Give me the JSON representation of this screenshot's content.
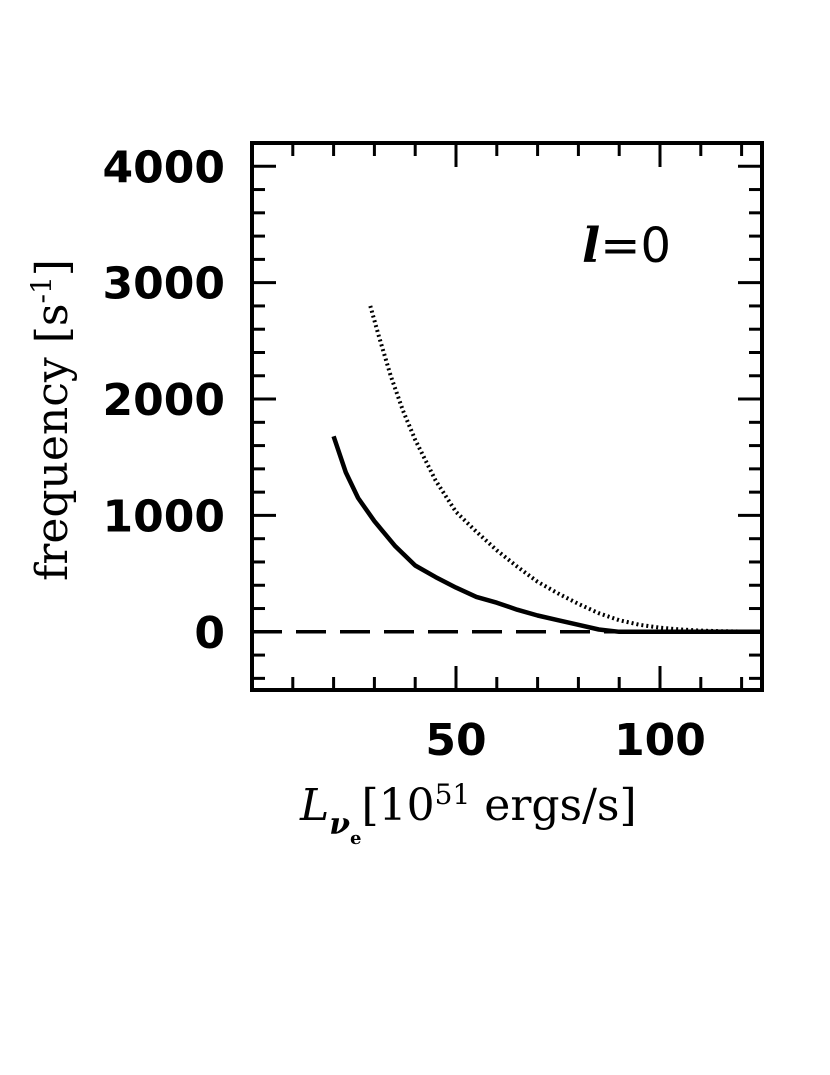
{
  "chart_data": {
    "type": "line",
    "title": "",
    "annotation": {
      "symbol": "l",
      "text": "=0"
    },
    "xlabel": {
      "symbol": "L",
      "sub": "ν",
      "subsub": "e",
      "prefix": "[10",
      "exp": "51",
      "suffix": " ergs/s]"
    },
    "ylabel": {
      "text": "frequency [s",
      "exp": "-1",
      "close": "]"
    },
    "xlim": [
      0,
      125
    ],
    "ylim": [
      -500,
      4200
    ],
    "xticks": [
      50,
      100
    ],
    "xtick_labels": [
      "50",
      "100"
    ],
    "yticks": [
      0,
      1000,
      2000,
      3000,
      4000
    ],
    "ytick_labels": [
      "0",
      "1000",
      "2000",
      "3000",
      "4000"
    ],
    "x_minor_step": 10,
    "y_minor_step": 200,
    "grid": false,
    "legend": "none",
    "series": [
      {
        "style": "solid",
        "points": [
          [
            20,
            1680
          ],
          [
            23,
            1370
          ],
          [
            26,
            1150
          ],
          [
            30,
            950
          ],
          [
            35,
            740
          ],
          [
            40,
            570
          ],
          [
            45,
            470
          ],
          [
            50,
            380
          ],
          [
            55,
            300
          ],
          [
            60,
            250
          ],
          [
            65,
            190
          ],
          [
            70,
            140
          ],
          [
            75,
            100
          ],
          [
            80,
            60
          ],
          [
            85,
            20
          ],
          [
            90,
            0
          ],
          [
            100,
            0
          ],
          [
            110,
            0
          ],
          [
            125,
            0
          ]
        ]
      },
      {
        "style": "dotted",
        "points": [
          [
            29,
            2800
          ],
          [
            31,
            2550
          ],
          [
            34,
            2200
          ],
          [
            37,
            1900
          ],
          [
            40,
            1650
          ],
          [
            45,
            1300
          ],
          [
            50,
            1030
          ],
          [
            55,
            860
          ],
          [
            60,
            700
          ],
          [
            65,
            560
          ],
          [
            70,
            430
          ],
          [
            75,
            330
          ],
          [
            80,
            240
          ],
          [
            85,
            160
          ],
          [
            90,
            100
          ],
          [
            95,
            60
          ],
          [
            100,
            35
          ],
          [
            105,
            20
          ],
          [
            110,
            10
          ],
          [
            115,
            5
          ],
          [
            125,
            0
          ]
        ]
      },
      {
        "style": "dashed",
        "points": [
          [
            0,
            0
          ],
          [
            125,
            0
          ]
        ]
      }
    ]
  }
}
